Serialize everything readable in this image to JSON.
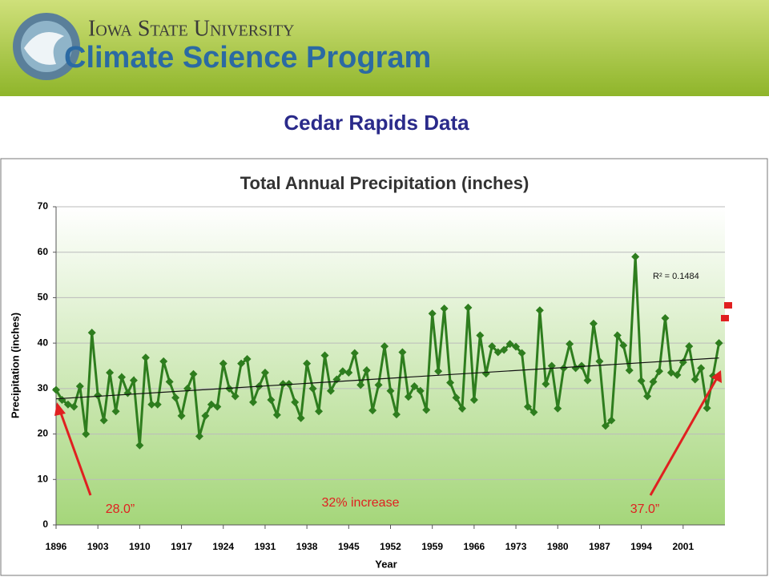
{
  "header": {
    "university": "Iowa State University",
    "program": "Climate Science Program"
  },
  "slide_title": "Cedar Rapids Data",
  "chart_data": {
    "type": "line",
    "title": "Total Annual Precipitation (inches)",
    "x_label": "Year",
    "y_label": "Precipitation (inches)",
    "color": "#2e7d1e",
    "x": [
      1896,
      1897,
      1898,
      1899,
      1900,
      1901,
      1902,
      1903,
      1904,
      1905,
      1906,
      1907,
      1908,
      1909,
      1910,
      1911,
      1912,
      1913,
      1914,
      1915,
      1916,
      1917,
      1918,
      1919,
      1920,
      1921,
      1922,
      1923,
      1924,
      1925,
      1926,
      1927,
      1928,
      1929,
      1930,
      1931,
      1932,
      1933,
      1934,
      1935,
      1936,
      1937,
      1938,
      1939,
      1940,
      1941,
      1942,
      1943,
      1944,
      1945,
      1946,
      1947,
      1948,
      1949,
      1950,
      1951,
      1952,
      1953,
      1954,
      1955,
      1956,
      1957,
      1958,
      1959,
      1960,
      1961,
      1962,
      1963,
      1964,
      1965,
      1966,
      1967,
      1968,
      1969,
      1970,
      1971,
      1972,
      1973,
      1974,
      1975,
      1976,
      1977,
      1978,
      1979,
      1980,
      1981,
      1982,
      1983,
      1984,
      1985,
      1986,
      1987,
      1988,
      1989,
      1990,
      1991,
      1992,
      1993,
      1994,
      1995,
      1996,
      1997,
      1998,
      1999,
      2000,
      2001,
      2002,
      2003,
      2004,
      2005,
      2006,
      2007
    ],
    "values": [
      29.7,
      27.5,
      26.5,
      26,
      30.5,
      20,
      42.3,
      28.5,
      23,
      33.5,
      25,
      32.5,
      29,
      31.8,
      17.5,
      36.8,
      26.5,
      26.5,
      36,
      31.5,
      28,
      24,
      30,
      33.2,
      19.5,
      24,
      26.5,
      26,
      35.5,
      30,
      28.3,
      35.5,
      36.5,
      27,
      30.5,
      33.5,
      27.5,
      24.2,
      31,
      31,
      27,
      23.5,
      35.5,
      30,
      25,
      37.3,
      29.5,
      32,
      33.8,
      33.5,
      37.8,
      30.8,
      34,
      25.2,
      30.8,
      39.3,
      29.5,
      24.3,
      38,
      28.2,
      30.5,
      29.5,
      25.3,
      46.5,
      33.8,
      47.6,
      31.3,
      28,
      25.6,
      47.8,
      27.5,
      41.7,
      33.3,
      39.3,
      38,
      38.5,
      39.8,
      39.2,
      37.8,
      26,
      24.8,
      47.2,
      31,
      35,
      25.6,
      34.5,
      39.8,
      34.5,
      35,
      31.8,
      44.3,
      36,
      21.8,
      23,
      41.7,
      39.5,
      34,
      59,
      31.7,
      28.3,
      31.5,
      33.8,
      45.5,
      33.5,
      33,
      35.8,
      39.3,
      32,
      34.5,
      25.7,
      32.8,
      40
    ],
    "xlim": [
      1896,
      2008
    ],
    "xticks": [
      1896,
      1903,
      1910,
      1917,
      1924,
      1931,
      1938,
      1945,
      1952,
      1959,
      1966,
      1973,
      1980,
      1987,
      1994,
      2001
    ],
    "ylim": [
      0,
      70
    ],
    "yticks": [
      0,
      10,
      20,
      30,
      40,
      50,
      60,
      70
    ],
    "grid": true,
    "trendline": true,
    "annotations": [
      "28.0”",
      "32% increase",
      "37.0”",
      "R² = 0.1484"
    ]
  }
}
